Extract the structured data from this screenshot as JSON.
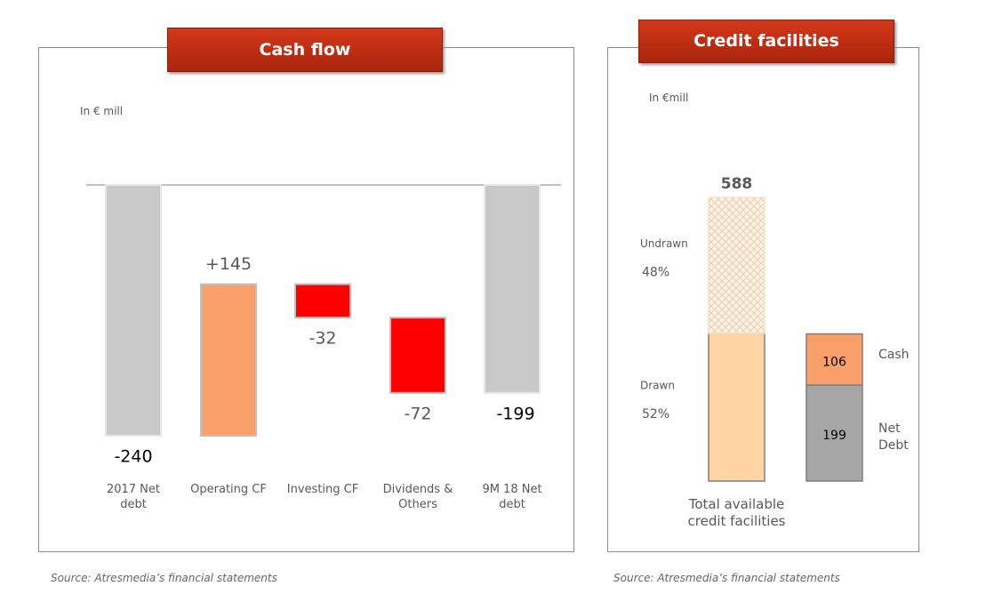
{
  "chart_data": [
    {
      "type": "waterfall",
      "title": "Cash flow",
      "subtitle": "In € mill",
      "source": "Source: Atresmedia’s financial statements",
      "categories": [
        "2017  Net debt",
        "Operating CF",
        "Investing CF",
        "Dividends & Others",
        "9M 18 Net debt"
      ],
      "values": [
        -240,
        145,
        -32,
        -72,
        -199
      ],
      "value_labels": [
        "-240",
        "+145",
        "-32",
        "-72",
        "-199"
      ],
      "colors": [
        "#c9c9c9",
        "#f9a06a",
        "#ff0000",
        "#ff0000",
        "#c9c9c9"
      ]
    },
    {
      "type": "stacked_bar",
      "title": "Credit facilities",
      "subtitle": "In €mill",
      "source": "Source: Atresmedia’s financial statements",
      "bars": [
        {
          "category": "Total available credit facilities",
          "total": 588,
          "segments": [
            {
              "name": "Drawn",
              "value": 52,
              "value_label": "52%",
              "color": "#fdd4a2"
            },
            {
              "name": "Undrawn",
              "value": 48,
              "value_label": "48%",
              "color": "#fdf1e3",
              "hatch": true
            }
          ]
        },
        {
          "segments": [
            {
              "name": "Net Debt",
              "value": 199,
              "color": "#a6a6a6"
            },
            {
              "name": "Cash",
              "value": 106,
              "color": "#f9a06a"
            }
          ]
        }
      ]
    }
  ]
}
